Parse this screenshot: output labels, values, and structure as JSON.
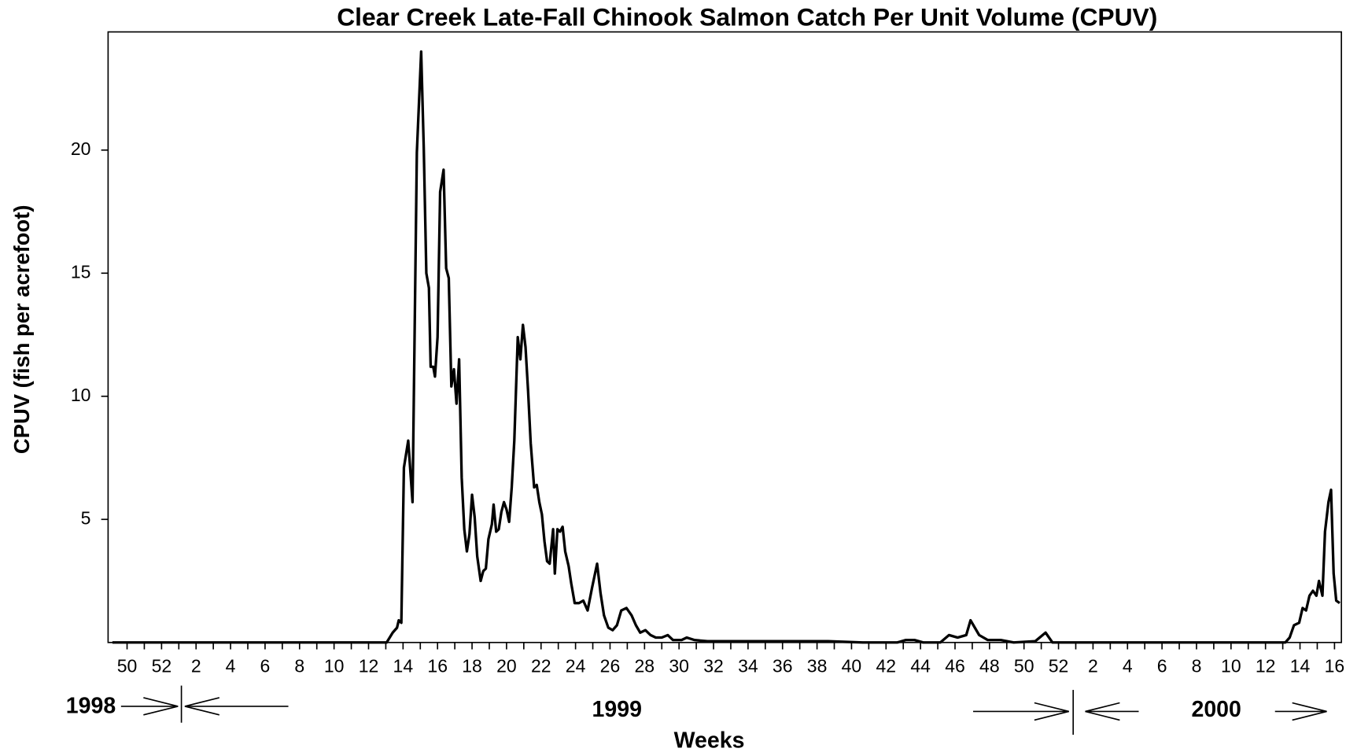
{
  "chart_data": {
    "type": "line",
    "title": "Clear Creek Late-Fall Chinook Salmon Catch Per Unit Volume (CPUV)",
    "ylabel": "CPUV (fish per acrefoot)",
    "xlabel": "Weeks",
    "years": [
      "1998",
      "1999",
      "2000"
    ],
    "color": "#000000",
    "xlim": [
      -1.1,
      70.4
    ],
    "ylim": [
      0,
      24.8
    ],
    "yticks": [
      5,
      10,
      15,
      20
    ],
    "xticks": [
      {
        "value": 0,
        "label": "50"
      },
      {
        "value": 2,
        "label": "52"
      },
      {
        "value": 4,
        "label": "2"
      },
      {
        "value": 6,
        "label": "4"
      },
      {
        "value": 8,
        "label": "6"
      },
      {
        "value": 10,
        "label": "8"
      },
      {
        "value": 12,
        "label": "10"
      },
      {
        "value": 14,
        "label": "12"
      },
      {
        "value": 16,
        "label": "14"
      },
      {
        "value": 18,
        "label": "16"
      },
      {
        "value": 20,
        "label": "18"
      },
      {
        "value": 22,
        "label": "20"
      },
      {
        "value": 24,
        "label": "22"
      },
      {
        "value": 26,
        "label": "24"
      },
      {
        "value": 28,
        "label": "26"
      },
      {
        "value": 30,
        "label": "28"
      },
      {
        "value": 32,
        "label": "30"
      },
      {
        "value": 34,
        "label": "32"
      },
      {
        "value": 36,
        "label": "34"
      },
      {
        "value": 38,
        "label": "36"
      },
      {
        "value": 40,
        "label": "38"
      },
      {
        "value": 42,
        "label": "40"
      },
      {
        "value": 44,
        "label": "42"
      },
      {
        "value": 46,
        "label": "44"
      },
      {
        "value": 48,
        "label": "46"
      },
      {
        "value": 50,
        "label": "48"
      },
      {
        "value": 52,
        "label": "50"
      },
      {
        "value": 54,
        "label": "52"
      },
      {
        "value": 56,
        "label": "2"
      },
      {
        "value": 58,
        "label": "4"
      },
      {
        "value": 60,
        "label": "6"
      },
      {
        "value": 62,
        "label": "8"
      },
      {
        "value": 64,
        "label": "10"
      },
      {
        "value": 66,
        "label": "12"
      },
      {
        "value": 68,
        "label": "14"
      },
      {
        "value": 70,
        "label": "16"
      }
    ],
    "xminor_ticks": [
      1,
      3,
      5,
      7,
      9,
      11,
      13,
      15,
      17,
      19,
      21,
      23,
      25,
      27,
      29,
      31,
      33,
      35,
      37,
      39,
      41,
      43,
      45,
      47,
      49,
      51,
      53,
      55,
      57,
      59,
      61,
      63,
      65,
      67,
      69
    ],
    "x": [
      -0.85,
      15.05,
      15.4,
      15.65,
      15.75,
      15.9,
      16.05,
      16.3,
      16.55,
      16.8,
      17.05,
      17.2,
      17.35,
      17.5,
      17.6,
      17.75,
      17.85,
      18.0,
      18.15,
      18.35,
      18.5,
      18.65,
      18.8,
      18.95,
      19.1,
      19.25,
      19.4,
      19.55,
      19.7,
      19.85,
      20.0,
      20.15,
      20.3,
      20.5,
      20.65,
      20.8,
      20.95,
      21.15,
      21.25,
      21.4,
      21.55,
      21.7,
      21.85,
      22.0,
      22.15,
      22.3,
      22.45,
      22.65,
      22.8,
      22.95,
      23.1,
      23.25,
      23.4,
      23.6,
      23.75,
      23.9,
      24.05,
      24.2,
      24.35,
      24.5,
      24.7,
      24.8,
      24.95,
      25.1,
      25.25,
      25.4,
      25.6,
      25.75,
      25.95,
      26.2,
      26.45,
      26.7,
      26.95,
      27.25,
      27.45,
      27.65,
      27.9,
      28.15,
      28.4,
      28.65,
      28.95,
      29.25,
      29.5,
      29.75,
      30.05,
      30.35,
      30.65,
      31.0,
      31.35,
      31.65,
      32.15,
      32.45,
      32.9,
      33.65,
      34.65,
      37.65,
      40.65,
      42.65,
      44.65,
      45.15,
      45.65,
      46.15,
      47.15,
      47.65,
      48.15,
      48.65,
      48.9,
      49.15,
      49.4,
      49.9,
      50.65,
      51.4,
      52.65,
      53.25,
      53.65,
      55.65,
      67.15,
      67.4,
      67.65,
      67.95,
      68.15,
      68.35,
      68.55,
      68.75,
      68.95,
      69.1,
      69.3,
      69.45,
      69.65,
      69.8,
      69.95,
      70.1,
      70.3
    ],
    "values": [
      0,
      0,
      0.4,
      0.6,
      0.9,
      0.8,
      7.1,
      8.2,
      5.7,
      19.9,
      24.0,
      20.1,
      15.0,
      14.4,
      11.2,
      11.2,
      10.8,
      12.4,
      18.3,
      19.2,
      15.2,
      14.8,
      10.4,
      11.1,
      9.7,
      11.5,
      6.7,
      4.6,
      3.7,
      4.4,
      6.0,
      5.1,
      3.5,
      2.5,
      2.9,
      3.0,
      4.2,
      4.8,
      5.6,
      4.5,
      4.6,
      5.3,
      5.7,
      5.4,
      4.9,
      6.3,
      8.2,
      12.4,
      11.5,
      12.9,
      12.0,
      10.2,
      8.1,
      6.3,
      6.4,
      5.7,
      5.2,
      4.1,
      3.3,
      3.2,
      4.6,
      2.8,
      4.6,
      4.5,
      4.7,
      3.7,
      3.1,
      2.4,
      1.6,
      1.6,
      1.7,
      1.3,
      2.2,
      3.2,
      2.0,
      1.1,
      0.6,
      0.5,
      0.7,
      1.3,
      1.4,
      1.1,
      0.7,
      0.4,
      0.5,
      0.3,
      0.2,
      0.2,
      0.3,
      0.1,
      0.1,
      0.2,
      0.1,
      0.05,
      0.05,
      0.05,
      0.05,
      0,
      0,
      0.1,
      0.1,
      0,
      0,
      0.3,
      0.2,
      0.3,
      0.9,
      0.6,
      0.3,
      0.1,
      0.1,
      0,
      0.05,
      0.4,
      0,
      0,
      0,
      0.2,
      0.7,
      0.8,
      1.4,
      1.3,
      1.9,
      2.1,
      1.9,
      2.5,
      1.9,
      4.5,
      5.7,
      6.2,
      2.8,
      1.7,
      1.6
    ]
  }
}
